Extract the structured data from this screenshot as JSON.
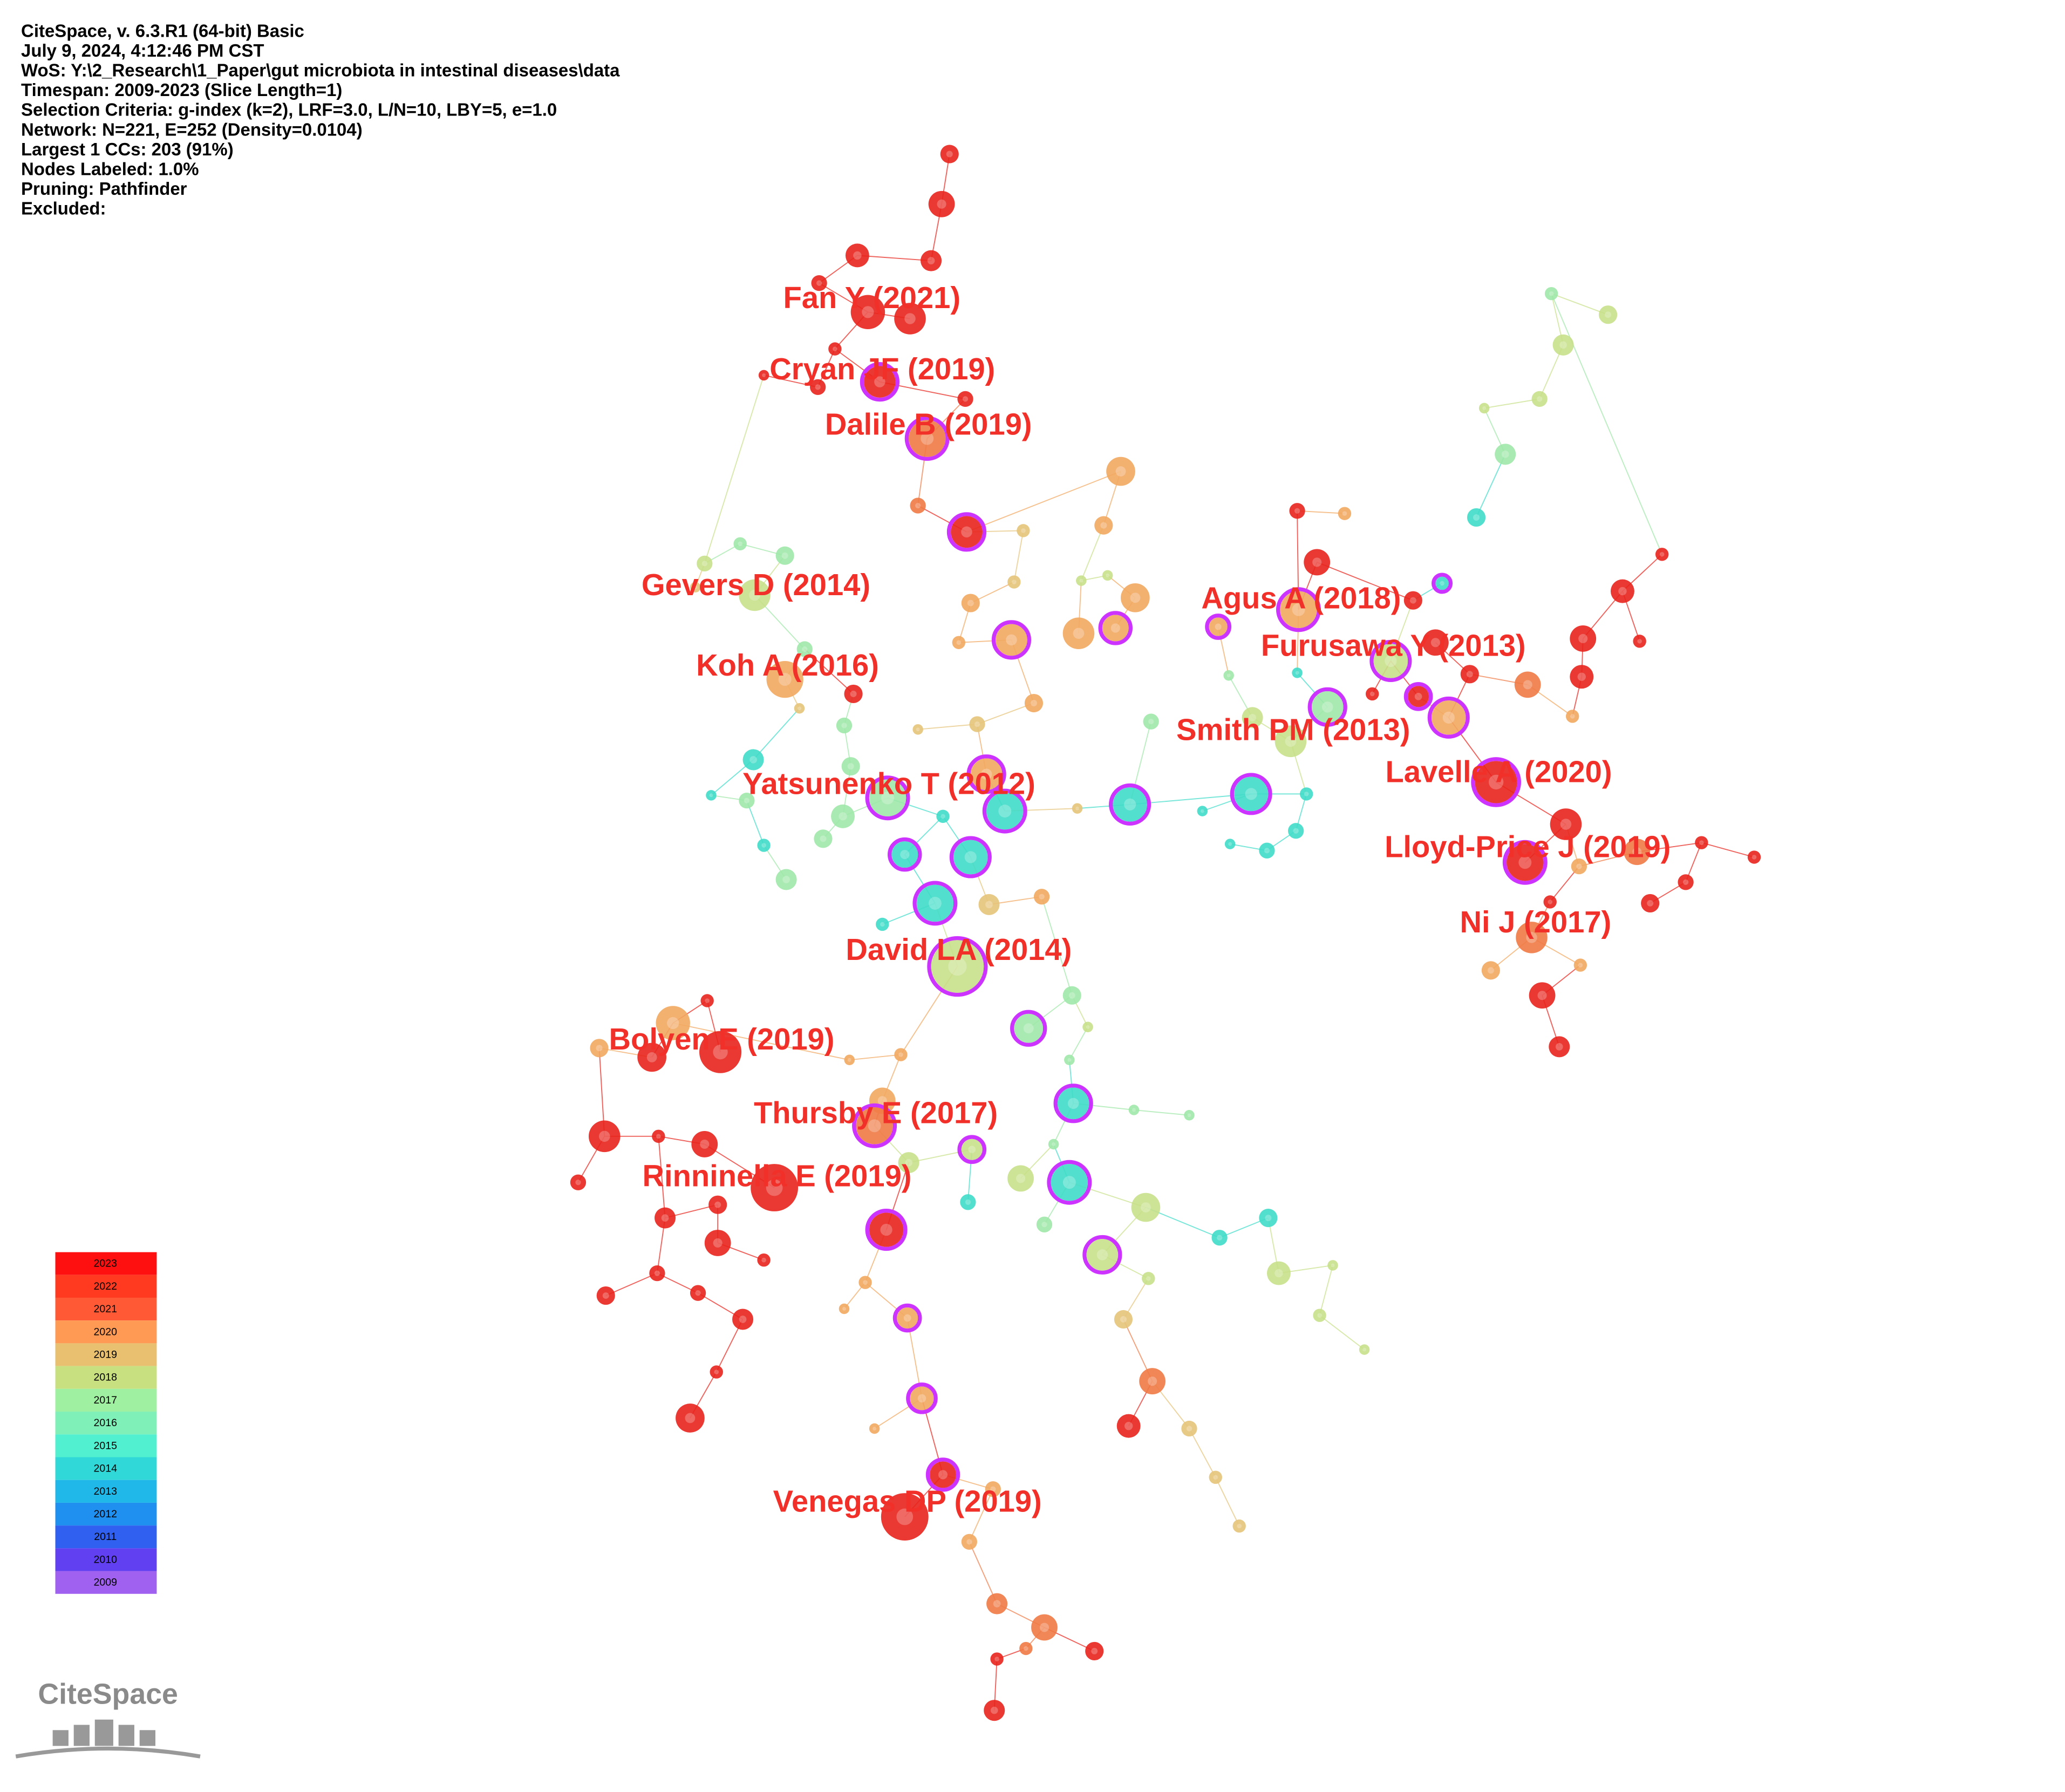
{
  "header": {
    "lines": [
      "CiteSpace, v. 6.3.R1 (64-bit) Basic",
      "July 9, 2024, 4:12:46 PM CST",
      "WoS: Y:\\2_Research\\1_Paper\\gut microbiota in intestinal diseases\\data",
      "Timespan: 2009-2023 (Slice Length=1)",
      "Selection Criteria: g-index (k=2), LRF=3.0, L/N=10, LBY=5, e=1.0",
      "Network: N=221, E=252 (Density=0.0104)",
      "Largest 1 CCs: 203 (91%)",
      "Nodes Labeled: 1.0%",
      "Pruning: Pathfinder",
      "Excluded:"
    ]
  },
  "node_labels": [
    "Fan Y (2021)",
    "Cryan JF (2019)",
    "Dalile B (2019)",
    "Gevers D (2014)",
    "Koh A (2016)",
    "Agus A (2018)",
    "Furusawa Y (2013)",
    "Smith PM (2013)",
    "Yatsunenko T (2012)",
    "Lavelle A (2020)",
    "Lloyd-Price J (2019)",
    "Ni J (2017)",
    "David LA (2014)",
    "Bolyen E (2019)",
    "Thursby E (2017)",
    "Rinninella E (2019)",
    "Venegas DP (2019)"
  ],
  "legend": {
    "years": [
      "2023",
      "2022",
      "2021",
      "2020",
      "2019",
      "2018",
      "2017",
      "2016",
      "2015",
      "2014",
      "2013",
      "2012",
      "2011",
      "2010",
      "2009"
    ]
  },
  "logo": {
    "text": "CiteSpace"
  }
}
